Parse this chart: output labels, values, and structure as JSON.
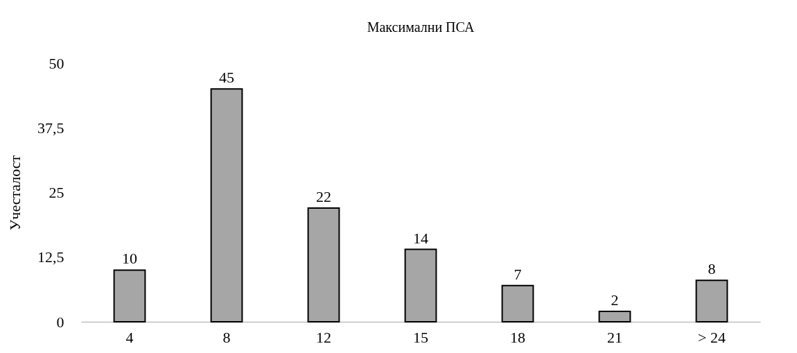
{
  "chart_data": {
    "type": "bar",
    "title": "Максимални ПСА",
    "ylabel": "Учесталост",
    "categories": [
      "4",
      "8",
      "12",
      "15",
      "18",
      "21",
      "> 24"
    ],
    "values": [
      10,
      45,
      22,
      14,
      7,
      2,
      8
    ],
    "color": "#a6a6a6",
    "ylim": [
      0,
      50
    ],
    "yticks": [
      0,
      {
        "value": 12.5,
        "label": "12,5"
      },
      25,
      {
        "value": 37.5,
        "label": "37,5"
      },
      50
    ],
    "data_labels": true,
    "grid": false
  }
}
